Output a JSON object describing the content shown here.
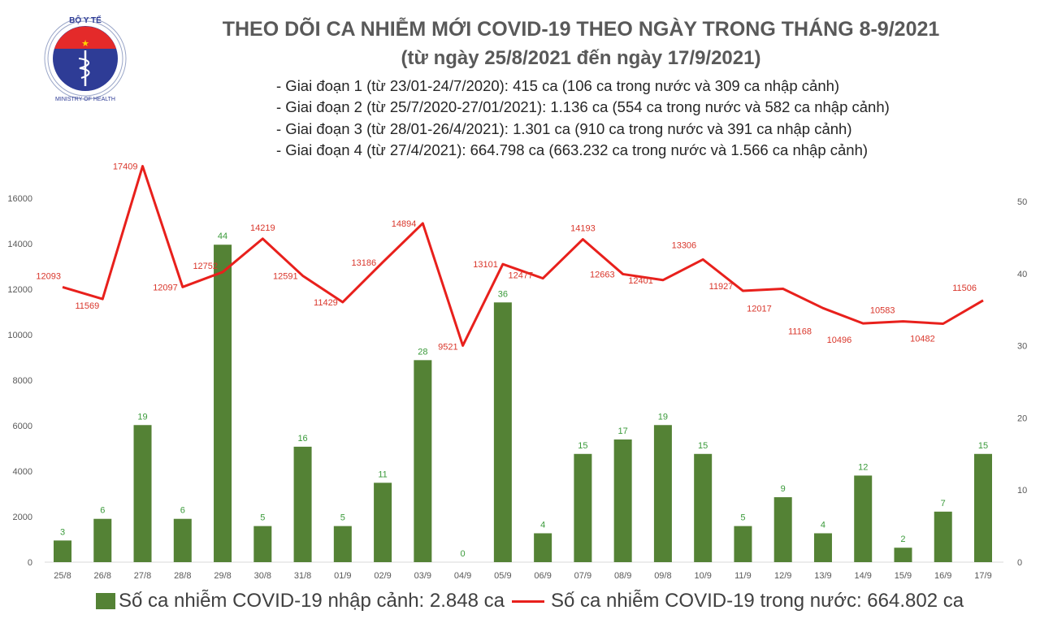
{
  "logo": {
    "top_text": "BỘ Y TẾ",
    "bottom_text": "MINISTRY OF HEALTH"
  },
  "header": {
    "title": "THEO DÕI CA NHIỄM MỚI COVID-19 THEO NGÀY TRONG THÁNG 8-9/2021",
    "subtitle": "(từ ngày 25/8/2021 đến ngày 17/9/2021)",
    "stages": [
      "- Giai đoạn 1 (từ 23/01-24/7/2020): 415 ca (106 ca trong nước và 309 ca nhập cảnh)",
      "- Giai đoạn 2 (từ 25/7/2020-27/01/2021): 1.136 ca (554 ca trong nước và 582 ca nhập cảnh)",
      "- Giai đoạn 3 (từ 28/01-26/4/2021): 1.301 ca (910 ca trong nước và 391 ca nhập cảnh)",
      "- Giai đoạn 4 (từ 27/4/2021): 664.798 ca (663.232 ca trong nước và 1.566 ca nhập cảnh)"
    ]
  },
  "chart_data": {
    "type": "bar+line",
    "title": "THEO DÕI CA NHIỄM MỚI COVID-19 THEO NGÀY TRONG THÁNG 8-9/2021",
    "categories": [
      "25/8",
      "26/8",
      "27/8",
      "28/8",
      "29/8",
      "30/8",
      "31/8",
      "01/9",
      "02/9",
      "03/9",
      "04/9",
      "05/9",
      "06/9",
      "07/9",
      "08/9",
      "09/8",
      "10/9",
      "11/9",
      "12/9",
      "13/9",
      "14/9",
      "15/9",
      "16/9",
      "17/9"
    ],
    "series": [
      {
        "name": "Số ca nhiễm COVID-19 nhập cảnh: 2.848 ca",
        "type": "bar",
        "axis": "right",
        "color": "#548235",
        "values": [
          3,
          6,
          19,
          6,
          44,
          5,
          16,
          5,
          11,
          28,
          0,
          36,
          4,
          15,
          17,
          19,
          15,
          5,
          9,
          4,
          12,
          2,
          7,
          15
        ]
      },
      {
        "name": "Số ca nhiễm COVID-19 trong nước: 664.802 ca",
        "type": "line",
        "axis": "left",
        "color": "#e8201c",
        "values": [
          12093,
          11569,
          17409,
          12097,
          12752,
          14219,
          12591,
          11429,
          13186,
          14894,
          9521,
          13101,
          12477,
          14193,
          12663,
          12401,
          13306,
          11927,
          12017,
          11168,
          10496,
          10583,
          10482,
          11506
        ]
      }
    ],
    "left_axis": {
      "ylim": [
        0,
        18000
      ],
      "ticks": [
        0,
        2000,
        4000,
        6000,
        8000,
        10000,
        12000,
        14000,
        16000
      ]
    },
    "right_axis": {
      "ylim": [
        0,
        56.75
      ],
      "ticks": [
        0,
        10,
        20,
        30,
        40,
        50
      ]
    },
    "grid": false,
    "legend": "bottom"
  }
}
